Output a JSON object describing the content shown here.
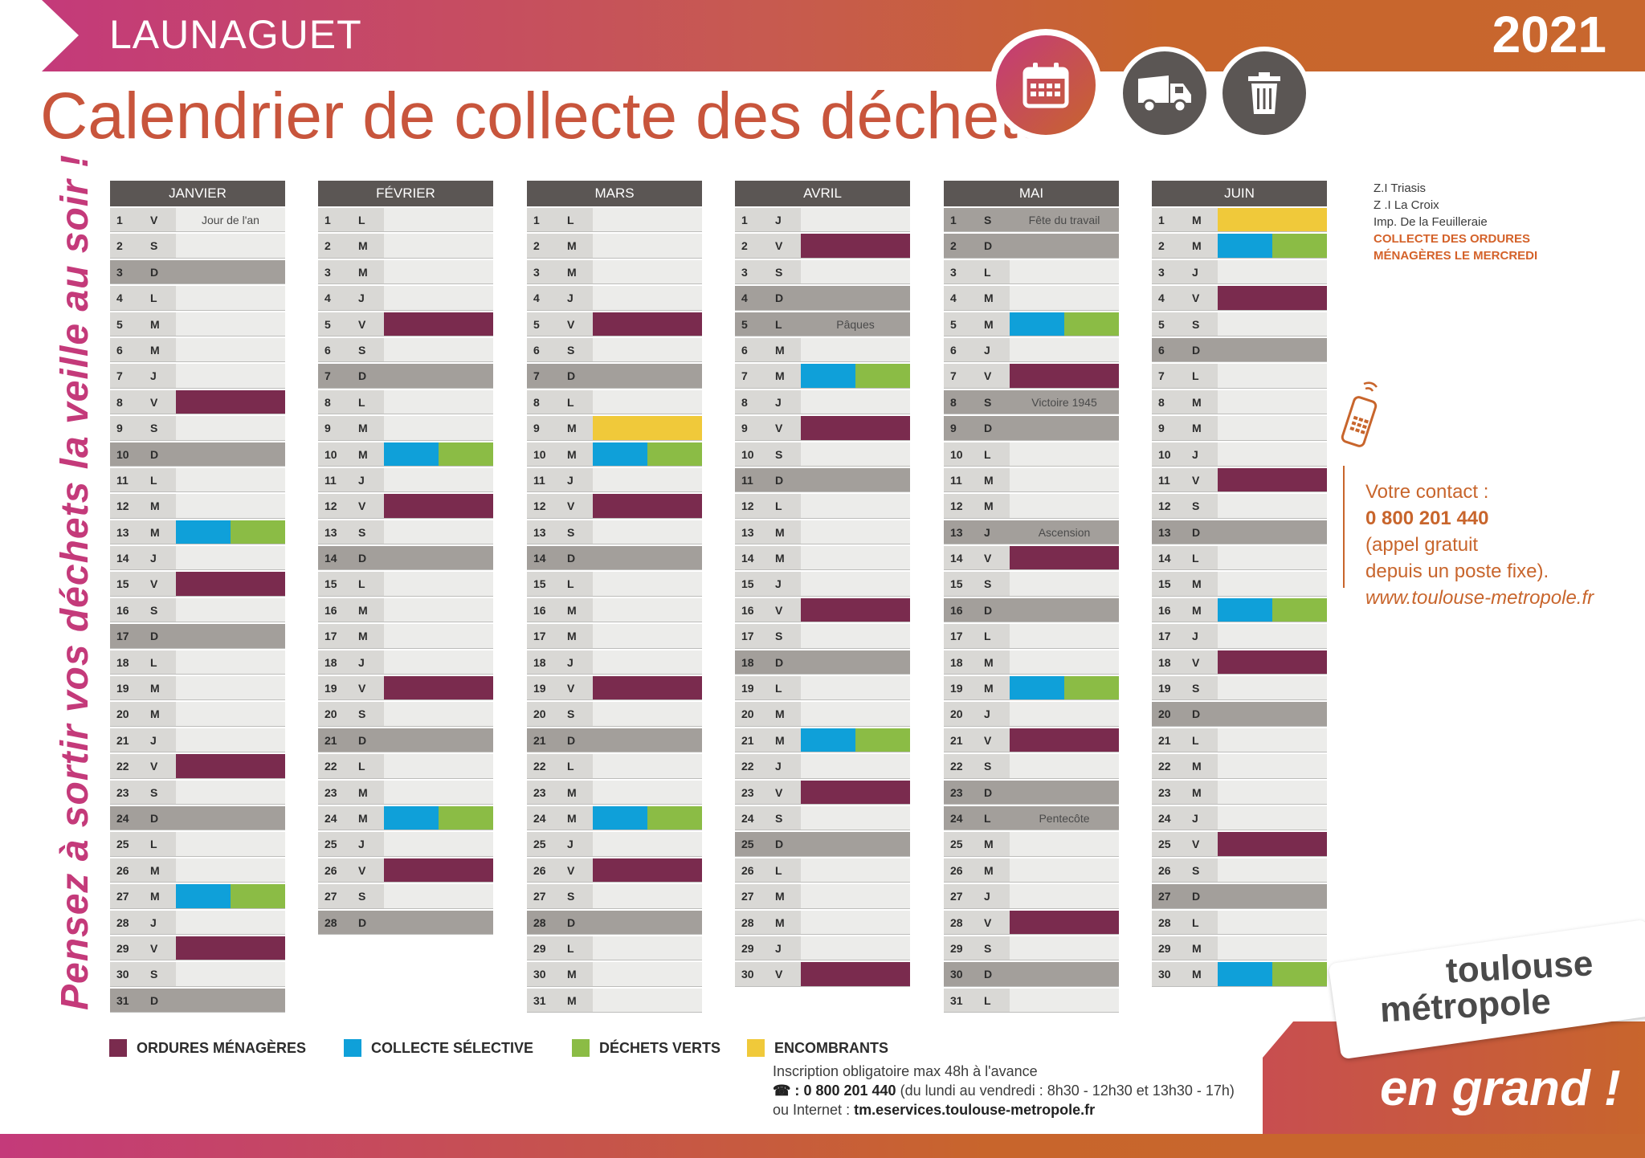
{
  "header": {
    "district": "LAUNAGUET",
    "year": "2021",
    "title": "Calendrier de collecte des déchets"
  },
  "side_text": "Pensez à sortir vos déchets la veille au soir !",
  "colors": {
    "ordures": "#7a2b4e",
    "selective": "#0fa0d9",
    "verts": "#8bbc45",
    "encombrants": "#f0c93a",
    "accent": "#c8652c"
  },
  "icons": [
    "calendar-icon",
    "truck-icon",
    "trash-bin-icon",
    "phone-icon"
  ],
  "months": [
    {
      "name": "JANVIER",
      "days": [
        {
          "n": "1",
          "d": "V",
          "note": "Jour de l'an"
        },
        {
          "n": "2",
          "d": "S"
        },
        {
          "n": "3",
          "d": "D"
        },
        {
          "n": "4",
          "d": "L"
        },
        {
          "n": "5",
          "d": "M"
        },
        {
          "n": "6",
          "d": "M"
        },
        {
          "n": "7",
          "d": "J"
        },
        {
          "n": "8",
          "d": "V",
          "c": [
            "ordures"
          ]
        },
        {
          "n": "9",
          "d": "S"
        },
        {
          "n": "10",
          "d": "D"
        },
        {
          "n": "11",
          "d": "L"
        },
        {
          "n": "12",
          "d": "M"
        },
        {
          "n": "13",
          "d": "M",
          "c": [
            "selective",
            "verts"
          ]
        },
        {
          "n": "14",
          "d": "J"
        },
        {
          "n": "15",
          "d": "V",
          "c": [
            "ordures"
          ]
        },
        {
          "n": "16",
          "d": "S"
        },
        {
          "n": "17",
          "d": "D"
        },
        {
          "n": "18",
          "d": "L"
        },
        {
          "n": "19",
          "d": "M"
        },
        {
          "n": "20",
          "d": "M"
        },
        {
          "n": "21",
          "d": "J"
        },
        {
          "n": "22",
          "d": "V",
          "c": [
            "ordures"
          ]
        },
        {
          "n": "23",
          "d": "S"
        },
        {
          "n": "24",
          "d": "D"
        },
        {
          "n": "25",
          "d": "L"
        },
        {
          "n": "26",
          "d": "M"
        },
        {
          "n": "27",
          "d": "M",
          "c": [
            "selective",
            "verts"
          ]
        },
        {
          "n": "28",
          "d": "J"
        },
        {
          "n": "29",
          "d": "V",
          "c": [
            "ordures"
          ]
        },
        {
          "n": "30",
          "d": "S"
        },
        {
          "n": "31",
          "d": "D"
        }
      ]
    },
    {
      "name": "FÉVRIER",
      "days": [
        {
          "n": "1",
          "d": "L"
        },
        {
          "n": "2",
          "d": "M"
        },
        {
          "n": "3",
          "d": "M"
        },
        {
          "n": "4",
          "d": "J"
        },
        {
          "n": "5",
          "d": "V",
          "c": [
            "ordures"
          ]
        },
        {
          "n": "6",
          "d": "S"
        },
        {
          "n": "7",
          "d": "D"
        },
        {
          "n": "8",
          "d": "L"
        },
        {
          "n": "9",
          "d": "M"
        },
        {
          "n": "10",
          "d": "M",
          "c": [
            "selective",
            "verts"
          ]
        },
        {
          "n": "11",
          "d": "J"
        },
        {
          "n": "12",
          "d": "V",
          "c": [
            "ordures"
          ]
        },
        {
          "n": "13",
          "d": "S"
        },
        {
          "n": "14",
          "d": "D"
        },
        {
          "n": "15",
          "d": "L"
        },
        {
          "n": "16",
          "d": "M"
        },
        {
          "n": "17",
          "d": "M"
        },
        {
          "n": "18",
          "d": "J"
        },
        {
          "n": "19",
          "d": "V",
          "c": [
            "ordures"
          ]
        },
        {
          "n": "20",
          "d": "S"
        },
        {
          "n": "21",
          "d": "D"
        },
        {
          "n": "22",
          "d": "L"
        },
        {
          "n": "23",
          "d": "M"
        },
        {
          "n": "24",
          "d": "M",
          "c": [
            "selective",
            "verts"
          ]
        },
        {
          "n": "25",
          "d": "J"
        },
        {
          "n": "26",
          "d": "V",
          "c": [
            "ordures"
          ]
        },
        {
          "n": "27",
          "d": "S"
        },
        {
          "n": "28",
          "d": "D"
        }
      ]
    },
    {
      "name": "MARS",
      "days": [
        {
          "n": "1",
          "d": "L"
        },
        {
          "n": "2",
          "d": "M"
        },
        {
          "n": "3",
          "d": "M"
        },
        {
          "n": "4",
          "d": "J"
        },
        {
          "n": "5",
          "d": "V",
          "c": [
            "ordures"
          ]
        },
        {
          "n": "6",
          "d": "S"
        },
        {
          "n": "7",
          "d": "D"
        },
        {
          "n": "8",
          "d": "L"
        },
        {
          "n": "9",
          "d": "M",
          "c": [
            "encombrants"
          ]
        },
        {
          "n": "10",
          "d": "M",
          "c": [
            "selective",
            "verts"
          ]
        },
        {
          "n": "11",
          "d": "J"
        },
        {
          "n": "12",
          "d": "V",
          "c": [
            "ordures"
          ]
        },
        {
          "n": "13",
          "d": "S"
        },
        {
          "n": "14",
          "d": "D"
        },
        {
          "n": "15",
          "d": "L"
        },
        {
          "n": "16",
          "d": "M"
        },
        {
          "n": "17",
          "d": "M"
        },
        {
          "n": "18",
          "d": "J"
        },
        {
          "n": "19",
          "d": "V",
          "c": [
            "ordures"
          ]
        },
        {
          "n": "20",
          "d": "S"
        },
        {
          "n": "21",
          "d": "D"
        },
        {
          "n": "22",
          "d": "L"
        },
        {
          "n": "23",
          "d": "M"
        },
        {
          "n": "24",
          "d": "M",
          "c": [
            "selective",
            "verts"
          ]
        },
        {
          "n": "25",
          "d": "J"
        },
        {
          "n": "26",
          "d": "V",
          "c": [
            "ordures"
          ]
        },
        {
          "n": "27",
          "d": "S"
        },
        {
          "n": "28",
          "d": "D"
        },
        {
          "n": "29",
          "d": "L"
        },
        {
          "n": "30",
          "d": "M"
        },
        {
          "n": "31",
          "d": "M"
        }
      ]
    },
    {
      "name": "AVRIL",
      "days": [
        {
          "n": "1",
          "d": "J"
        },
        {
          "n": "2",
          "d": "V",
          "c": [
            "ordures"
          ]
        },
        {
          "n": "3",
          "d": "S"
        },
        {
          "n": "4",
          "d": "D"
        },
        {
          "n": "5",
          "d": "L",
          "note": "Pâques",
          "hol": true
        },
        {
          "n": "6",
          "d": "M"
        },
        {
          "n": "7",
          "d": "M",
          "c": [
            "selective",
            "verts"
          ]
        },
        {
          "n": "8",
          "d": "J"
        },
        {
          "n": "9",
          "d": "V",
          "c": [
            "ordures"
          ]
        },
        {
          "n": "10",
          "d": "S"
        },
        {
          "n": "11",
          "d": "D"
        },
        {
          "n": "12",
          "d": "L"
        },
        {
          "n": "13",
          "d": "M"
        },
        {
          "n": "14",
          "d": "M"
        },
        {
          "n": "15",
          "d": "J"
        },
        {
          "n": "16",
          "d": "V",
          "c": [
            "ordures"
          ]
        },
        {
          "n": "17",
          "d": "S"
        },
        {
          "n": "18",
          "d": "D"
        },
        {
          "n": "19",
          "d": "L"
        },
        {
          "n": "20",
          "d": "M"
        },
        {
          "n": "21",
          "d": "M",
          "c": [
            "selective",
            "verts"
          ]
        },
        {
          "n": "22",
          "d": "J"
        },
        {
          "n": "23",
          "d": "V",
          "c": [
            "ordures"
          ]
        },
        {
          "n": "24",
          "d": "S"
        },
        {
          "n": "25",
          "d": "D"
        },
        {
          "n": "26",
          "d": "L"
        },
        {
          "n": "27",
          "d": "M"
        },
        {
          "n": "28",
          "d": "M"
        },
        {
          "n": "29",
          "d": "J"
        },
        {
          "n": "30",
          "d": "V",
          "c": [
            "ordures"
          ]
        }
      ]
    },
    {
      "name": "MAI",
      "days": [
        {
          "n": "1",
          "d": "S",
          "note": "Fête du travail",
          "hol": true
        },
        {
          "n": "2",
          "d": "D"
        },
        {
          "n": "3",
          "d": "L"
        },
        {
          "n": "4",
          "d": "M"
        },
        {
          "n": "5",
          "d": "M",
          "c": [
            "selective",
            "verts"
          ]
        },
        {
          "n": "6",
          "d": "J"
        },
        {
          "n": "7",
          "d": "V",
          "c": [
            "ordures"
          ]
        },
        {
          "n": "8",
          "d": "S",
          "note": "Victoire 1945",
          "hol": true
        },
        {
          "n": "9",
          "d": "D"
        },
        {
          "n": "10",
          "d": "L"
        },
        {
          "n": "11",
          "d": "M"
        },
        {
          "n": "12",
          "d": "M"
        },
        {
          "n": "13",
          "d": "J",
          "note": "Ascension",
          "hol": true
        },
        {
          "n": "14",
          "d": "V",
          "c": [
            "ordures"
          ]
        },
        {
          "n": "15",
          "d": "S"
        },
        {
          "n": "16",
          "d": "D"
        },
        {
          "n": "17",
          "d": "L"
        },
        {
          "n": "18",
          "d": "M"
        },
        {
          "n": "19",
          "d": "M",
          "c": [
            "selective",
            "verts"
          ]
        },
        {
          "n": "20",
          "d": "J"
        },
        {
          "n": "21",
          "d": "V",
          "c": [
            "ordures"
          ]
        },
        {
          "n": "22",
          "d": "S"
        },
        {
          "n": "23",
          "d": "D"
        },
        {
          "n": "24",
          "d": "L",
          "note": "Pentecôte",
          "hol": true
        },
        {
          "n": "25",
          "d": "M"
        },
        {
          "n": "26",
          "d": "M"
        },
        {
          "n": "27",
          "d": "J"
        },
        {
          "n": "28",
          "d": "V",
          "c": [
            "ordures"
          ]
        },
        {
          "n": "29",
          "d": "S"
        },
        {
          "n": "30",
          "d": "D"
        },
        {
          "n": "31",
          "d": "L"
        }
      ]
    },
    {
      "name": "JUIN",
      "days": [
        {
          "n": "1",
          "d": "M",
          "c": [
            "encombrants"
          ]
        },
        {
          "n": "2",
          "d": "M",
          "c": [
            "selective",
            "verts"
          ]
        },
        {
          "n": "3",
          "d": "J"
        },
        {
          "n": "4",
          "d": "V",
          "c": [
            "ordures"
          ]
        },
        {
          "n": "5",
          "d": "S"
        },
        {
          "n": "6",
          "d": "D"
        },
        {
          "n": "7",
          "d": "L"
        },
        {
          "n": "8",
          "d": "M"
        },
        {
          "n": "9",
          "d": "M"
        },
        {
          "n": "10",
          "d": "J"
        },
        {
          "n": "11",
          "d": "V",
          "c": [
            "ordures"
          ]
        },
        {
          "n": "12",
          "d": "S"
        },
        {
          "n": "13",
          "d": "D"
        },
        {
          "n": "14",
          "d": "L"
        },
        {
          "n": "15",
          "d": "M"
        },
        {
          "n": "16",
          "d": "M",
          "c": [
            "selective",
            "verts"
          ]
        },
        {
          "n": "17",
          "d": "J"
        },
        {
          "n": "18",
          "d": "V",
          "c": [
            "ordures"
          ]
        },
        {
          "n": "19",
          "d": "S"
        },
        {
          "n": "20",
          "d": "D"
        },
        {
          "n": "21",
          "d": "L"
        },
        {
          "n": "22",
          "d": "M"
        },
        {
          "n": "23",
          "d": "M"
        },
        {
          "n": "24",
          "d": "J"
        },
        {
          "n": "25",
          "d": "V",
          "c": [
            "ordures"
          ]
        },
        {
          "n": "26",
          "d": "S"
        },
        {
          "n": "27",
          "d": "D"
        },
        {
          "n": "28",
          "d": "L"
        },
        {
          "n": "29",
          "d": "M"
        },
        {
          "n": "30",
          "d": "M",
          "c": [
            "selective",
            "verts"
          ]
        }
      ]
    }
  ],
  "address": {
    "lines": [
      "Z.I Triasis",
      "Z .I La Croix",
      "Imp. De la Feuilleraie"
    ],
    "highlight1": "COLLECTE DES ORDURES",
    "highlight2": "MÉNAGÈRES LE MERCREDI"
  },
  "contact": {
    "label": "Votre contact :",
    "phone": "0 800 201 440",
    "line2": "(appel gratuit",
    "line3": "depuis un poste fixe).",
    "web": "www.toulouse-metropole.fr"
  },
  "legend": [
    {
      "key": "ordures",
      "label": "ORDURES MÉNAGÈRES"
    },
    {
      "key": "selective",
      "label": "COLLECTE SÉLECTIVE"
    },
    {
      "key": "verts",
      "label": "DÉCHETS VERTS"
    },
    {
      "key": "encombrants",
      "label": "ENCOMBRANTS"
    }
  ],
  "note": {
    "line1": "Inscription obligatoire max 48h à l'avance",
    "phone_symbol": "☎ :",
    "phone": "0 800 201 440",
    "hours": "(du lundi au vendredi : 8h30 - 12h30 et 13h30 - 17h)",
    "internet_prefix": "ou Internet :",
    "internet_url": "tm.eservices.toulouse-metropole.fr"
  },
  "brand": {
    "line1": "toulouse",
    "line2": "métropole",
    "slogan": "en grand !"
  }
}
